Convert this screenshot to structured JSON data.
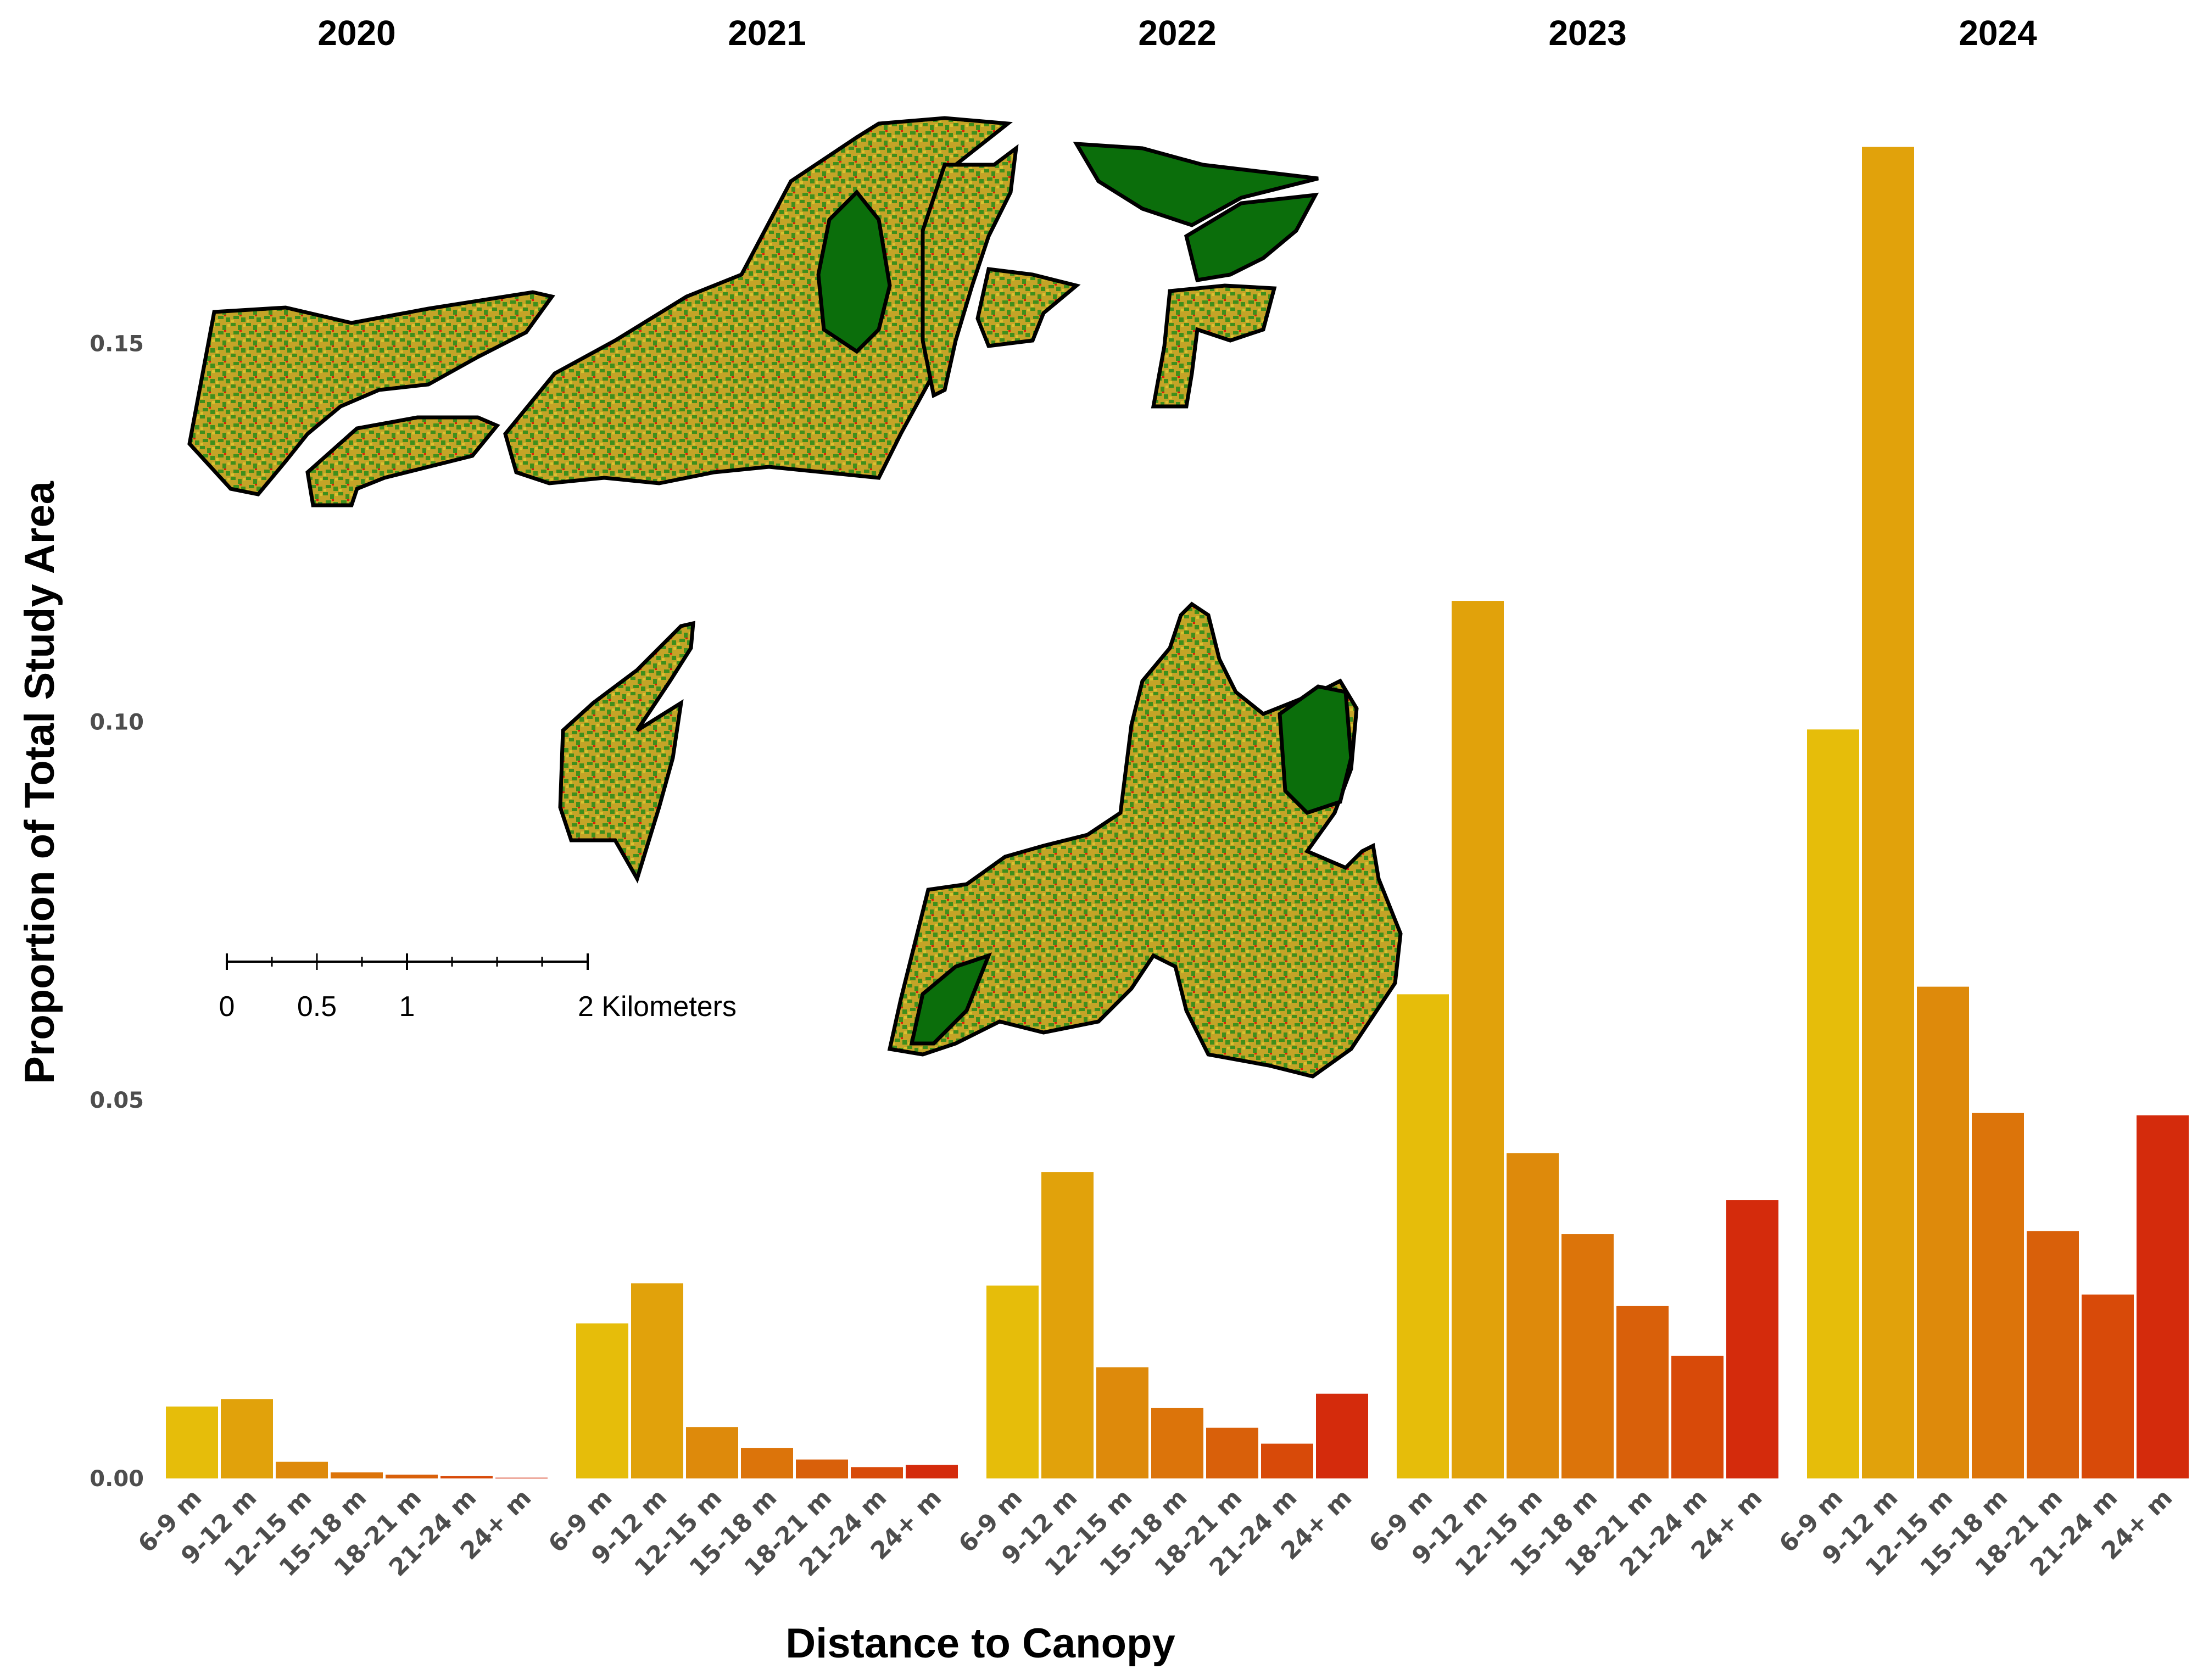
{
  "chart_data": {
    "type": "bar",
    "facet_by": "year",
    "facets": [
      {
        "title": "2020",
        "values": [
          0.0095,
          0.0105,
          0.0022,
          0.0008,
          0.0005,
          0.0003,
          0.0001
        ]
      },
      {
        "title": "2021",
        "values": [
          0.0205,
          0.0258,
          0.0068,
          0.004,
          0.0025,
          0.0015,
          0.0018
        ]
      },
      {
        "title": "2022",
        "values": [
          0.0255,
          0.0405,
          0.0147,
          0.0093,
          0.0067,
          0.0046,
          0.0112
        ]
      },
      {
        "title": "2023",
        "values": [
          0.064,
          0.116,
          0.043,
          0.0323,
          0.0228,
          0.0162,
          0.0368
        ]
      },
      {
        "title": "2024",
        "values": [
          0.099,
          0.176,
          0.065,
          0.0483,
          0.0327,
          0.0243,
          0.048
        ]
      }
    ],
    "categories": [
      "6-9 m",
      "9-12 m",
      "12-15 m",
      "15-18 m",
      "18-21 m",
      "21-24 m",
      "24+ m"
    ],
    "category_colors": [
      "#e6bd0a",
      "#e1a20b",
      "#de8a0b",
      "#dc740a",
      "#d9600a",
      "#d84a09",
      "#d42b0c"
    ],
    "xlabel": "Distance to Canopy",
    "ylabel": "Proportion of Total Study Area",
    "ylim": [
      0,
      0.178
    ],
    "yticks": [
      0.0,
      0.05,
      0.1,
      0.15
    ],
    "ytick_labels": [
      "0.00",
      "0.05",
      "0.10",
      "0.15"
    ],
    "grid": false,
    "legend": "none"
  },
  "map_inset": {
    "scale_labels": [
      "0",
      "0.5",
      "1",
      "2 Kilometers"
    ],
    "colors": {
      "forest": "#0b6e0b",
      "mixed": "#c4a427",
      "gap": "#e01b0c",
      "outline": "#000000"
    }
  }
}
